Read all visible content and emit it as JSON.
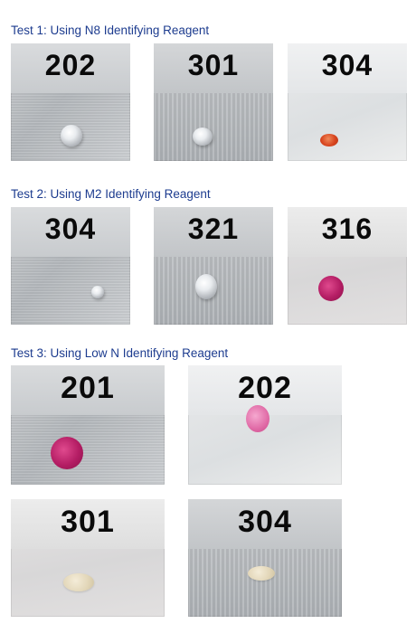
{
  "tests": [
    {
      "heading": "Test 1:  Using N8 Identifying Reagent",
      "samples": [
        {
          "number": "202",
          "drop": "clear"
        },
        {
          "number": "301",
          "drop": "clear"
        },
        {
          "number": "304",
          "drop": "red-orange"
        }
      ]
    },
    {
      "heading": "Test 2:  Using M2 Identifying Reagent",
      "samples": [
        {
          "number": "304",
          "drop": "clear"
        },
        {
          "number": "321",
          "drop": "clear"
        },
        {
          "number": "316",
          "drop": "magenta"
        }
      ]
    },
    {
      "heading": "Test 3:  Using Low N Identifying Reagent",
      "samples": [
        {
          "number": "201",
          "drop": "magenta"
        },
        {
          "number": "202",
          "drop": "pink"
        },
        {
          "number": "301",
          "drop": "pale-yellow"
        },
        {
          "number": "304",
          "drop": "pale-yellow"
        }
      ]
    }
  ],
  "colors": {
    "heading": "#1d3c8f",
    "clear_drop": "#e9ecef",
    "red_drop": "#d8451f",
    "magenta_drop": "#b41d64",
    "pink_drop": "#e06aa6",
    "pale_drop": "#e2d6b8"
  }
}
